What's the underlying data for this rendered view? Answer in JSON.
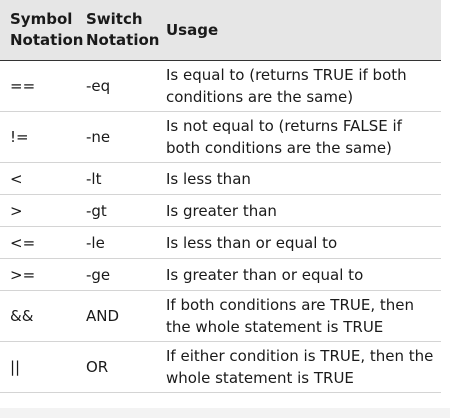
{
  "table": {
    "headers": {
      "symbol": "Symbol\nNotation",
      "switch": "Switch\nNotation",
      "usage": "Usage"
    },
    "rows": [
      {
        "symbol": "==",
        "switch": "-eq",
        "usage": "Is equal to (returns TRUE if both conditions are the same)"
      },
      {
        "symbol": "!=",
        "switch": "-ne",
        "usage": "Is not equal to (returns FALSE if both conditions are the same)"
      },
      {
        "symbol": "<",
        "switch": "-lt",
        "usage": "Is less than"
      },
      {
        "symbol": ">",
        "switch": "-gt",
        "usage": "Is greater than"
      },
      {
        "symbol": "<=",
        "switch": "-le",
        "usage": "Is less than or equal to"
      },
      {
        "symbol": ">=",
        "switch": "-ge",
        "usage": "Is greater than or equal to"
      },
      {
        "symbol": "&&",
        "switch": "AND",
        "usage": "If both conditions are TRUE, then the whole statement is TRUE"
      },
      {
        "symbol": "||",
        "switch": "OR",
        "usage": "If either condition is TRUE, then the whole statement is TRUE"
      }
    ]
  },
  "colors": {
    "header_bg": "#e6e6e6",
    "text": "#1a1a1a",
    "row_divider": "#d4d4d4"
  }
}
